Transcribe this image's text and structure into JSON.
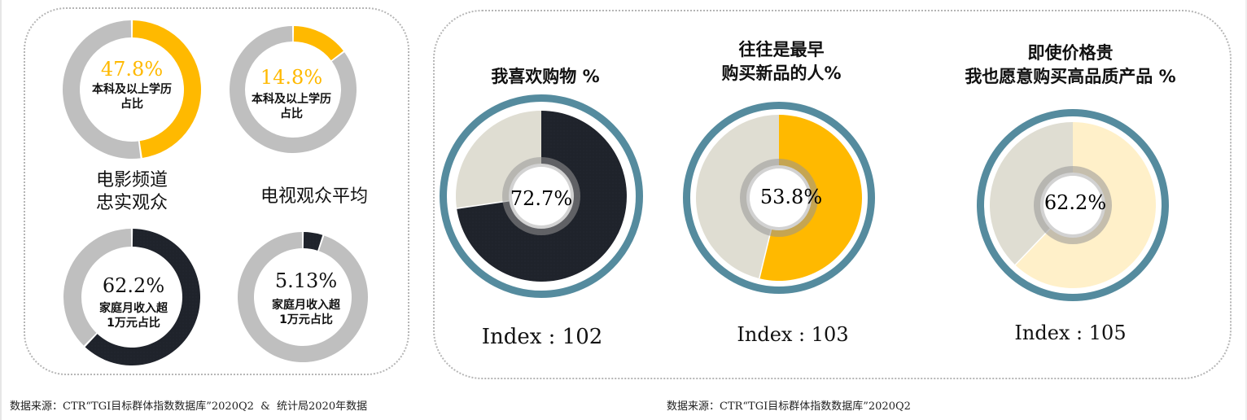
{
  "left_panel": {
    "group_titles": {
      "movie": "电影频道\n忠实观众",
      "tv": "电视观众平均"
    },
    "donuts": [
      {
        "id": "movie-education",
        "value_label": "47.8%",
        "label": "本科及以上学历\n占比",
        "value": 47.8,
        "value_color": "#FFB900"
      },
      {
        "id": "tv-education",
        "value_label": "14.8%",
        "label": "本科及以上学历\n占比",
        "value": 14.8,
        "value_color": "#FFB900"
      },
      {
        "id": "movie-income",
        "value_label": "62.2%",
        "label": "家庭月收入超\n1万元占比",
        "value": 62.2,
        "value_color": "#1F232B"
      },
      {
        "id": "tv-income",
        "value_label": "5.13%",
        "label": "家庭月收入超\n1万元占比",
        "value": 5.13,
        "value_color": "#1F232B"
      }
    ]
  },
  "right_panel": {
    "items": [
      {
        "title": "我喜欢购物 %",
        "value_label": "72.7%",
        "value": 72.7,
        "index_label": "Index : 102",
        "fill_color": "#1F232B"
      },
      {
        "title": "往往是最早\n购买新品的人%",
        "value_label": "53.8%",
        "value": 53.8,
        "index_label": "Index : 103",
        "fill_color": "#FFB900"
      },
      {
        "title": "即使价格贵\n我也愿意购买高品质产品 %",
        "value_label": "62.2%",
        "value": 62.2,
        "index_label": "Index : 105",
        "fill_color": "#FFF0C9"
      }
    ]
  },
  "sources": {
    "left": "数据来源：CTR“TGI目标群体指数数据库”2020Q2  &  统计局2020年数据",
    "right": "数据来源：CTR“TGI目标群体指数数据库”2020Q2"
  },
  "colors": {
    "yellow": "#FFB900",
    "dark": "#1F232B",
    "gray_ring": "#BFBFBF",
    "beige": "#DFDDD2",
    "teal": "#558B9E",
    "cream": "#FFF0C9"
  },
  "chart_data": [
    {
      "type": "pie",
      "title": "电影频道忠实观众 vs 电视观众平均",
      "categories": [
        "电影频道忠实观众",
        "电视观众平均"
      ],
      "series": [
        {
          "name": "本科及以上学历占比 (%)",
          "values": [
            47.8,
            14.8
          ]
        },
        {
          "name": "家庭月收入超1万元占比 (%)",
          "values": [
            62.2,
            5.13
          ]
        }
      ]
    },
    {
      "type": "pie",
      "title": "购物态度",
      "categories": [
        "我喜欢购物 %",
        "往往是最早购买新品的人%",
        "即使价格贵我也愿意购买高品质产品 %"
      ],
      "values": [
        72.7,
        53.8,
        62.2
      ],
      "index": [
        102,
        103,
        105
      ]
    }
  ]
}
